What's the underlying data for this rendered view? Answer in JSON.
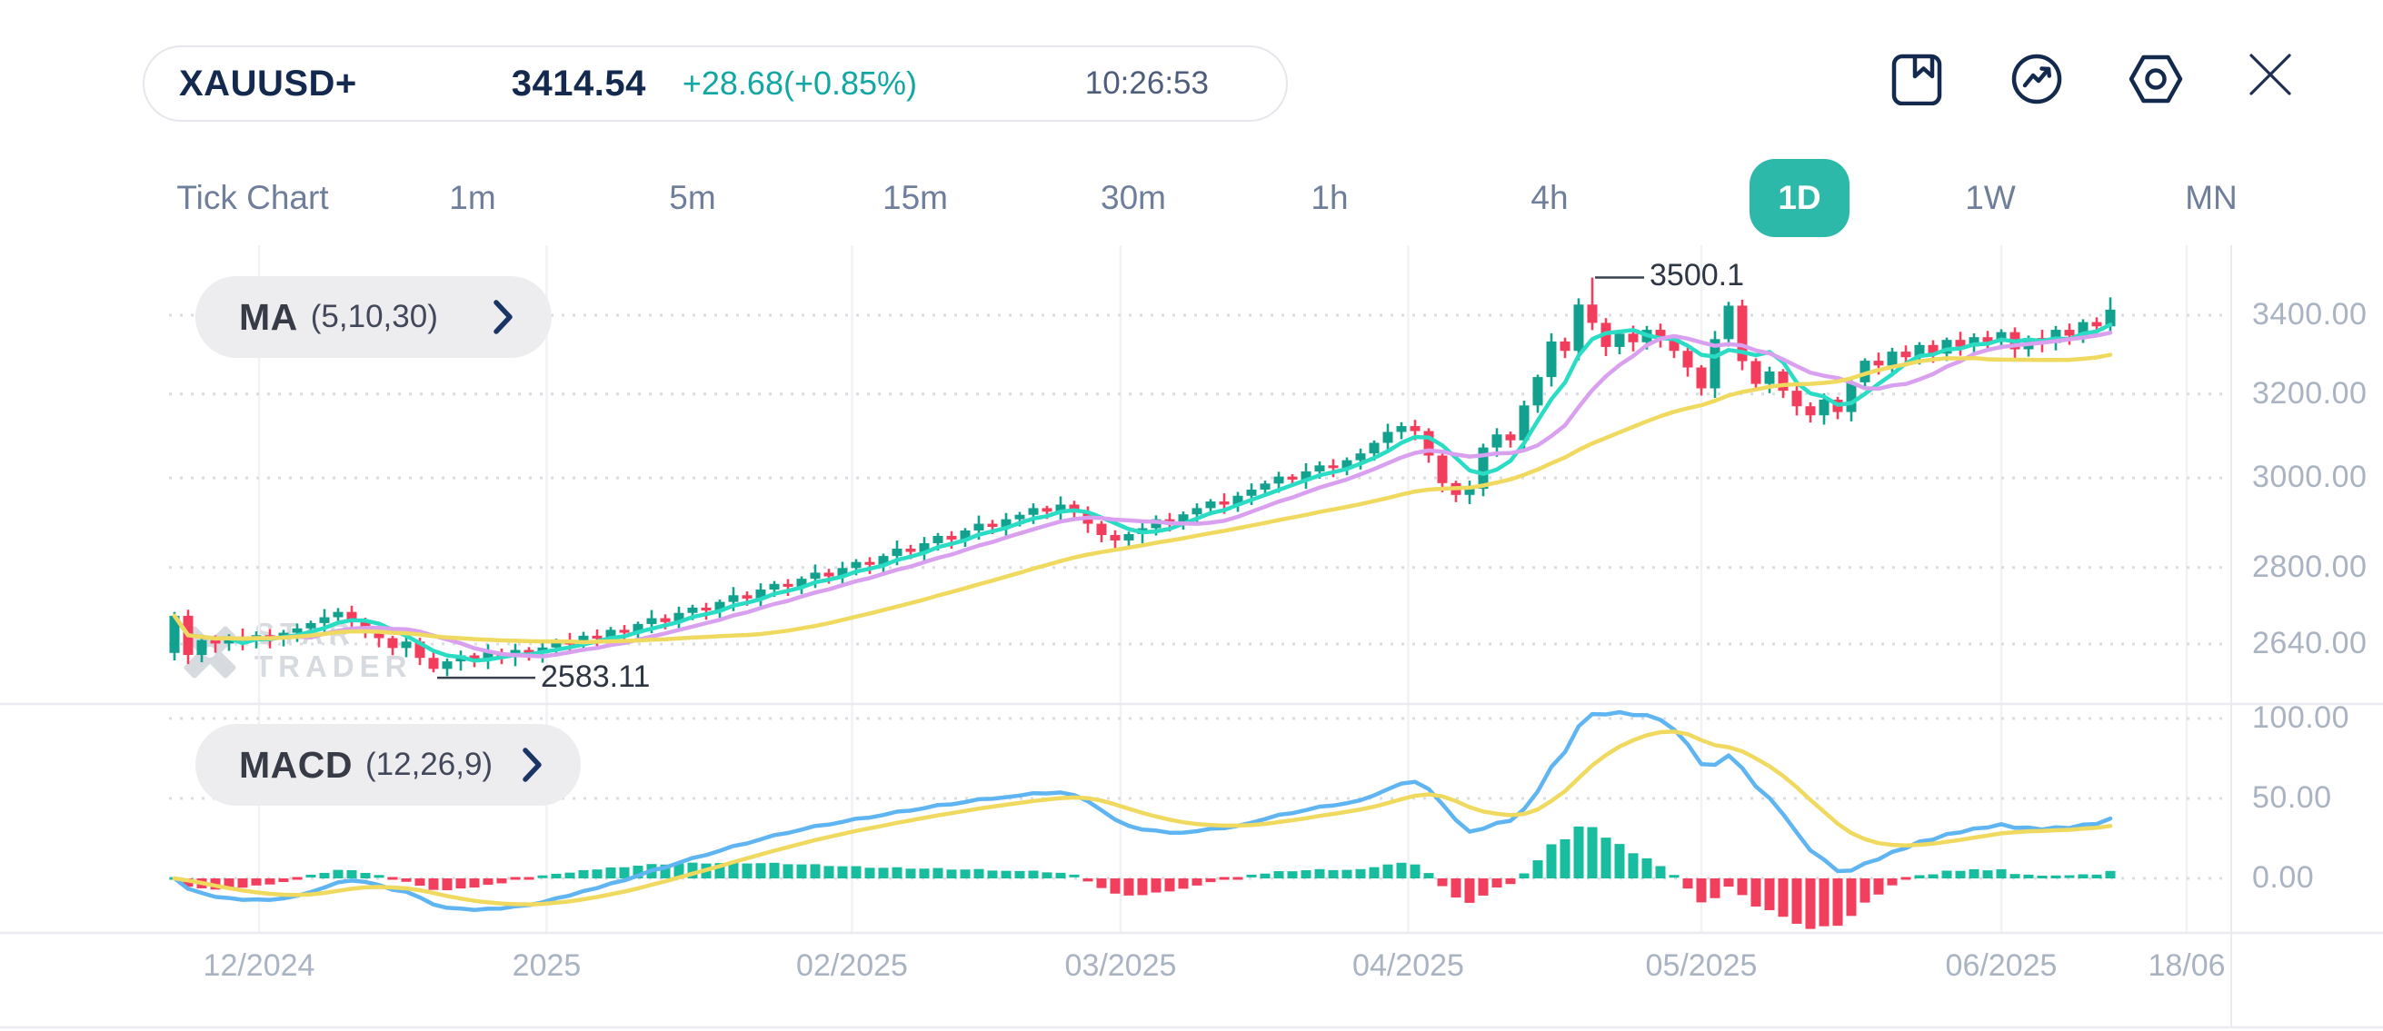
{
  "header": {
    "symbol": "XAUUSD+",
    "price": "3414.54",
    "change": "+28.68(+0.85%)",
    "time": "10:26:53"
  },
  "toolbar": {
    "icons": [
      "bookmark-icon",
      "trend-circle-icon",
      "settings-hex-icon",
      "close-icon"
    ]
  },
  "timeframes": {
    "items": [
      {
        "label": "Tick Chart",
        "active": false
      },
      {
        "label": "1m",
        "active": false
      },
      {
        "label": "5m",
        "active": false
      },
      {
        "label": "15m",
        "active": false
      },
      {
        "label": "30m",
        "active": false
      },
      {
        "label": "1h",
        "active": false
      },
      {
        "label": "4h",
        "active": false
      },
      {
        "label": "1D",
        "active": true
      },
      {
        "label": "1W",
        "active": false
      },
      {
        "label": "MN",
        "active": false
      }
    ]
  },
  "indicators": {
    "ma": {
      "name": "MA",
      "params": "(5,10,30)"
    },
    "macd": {
      "name": "MACD",
      "params": "(12,26,9)"
    }
  },
  "watermark": {
    "line1": "STAR",
    "line2": "TRADER"
  },
  "colors": {
    "navy": "#13294e",
    "change_teal": "#12a7a3",
    "active_tab": "#2cb9aa",
    "candle_up": "#13a18f",
    "candle_down": "#f23e5c",
    "ma5": "#2bdcc5",
    "ma10": "#d9a0ef",
    "ma30": "#efd95e",
    "macd_line": "#5fb4f2",
    "macd_signal": "#efd95e",
    "hist_up": "#17bd9e",
    "hist_down": "#f23f5e",
    "grid_dotted": "#d9dce1",
    "grid_vertical": "#f1f2f4",
    "separator": "#e9ebf0",
    "axis_text": "#a9b3c2",
    "annotation_line": "#39404e"
  },
  "chart_data": {
    "type": "candlestick",
    "symbol": "XAUUSD+",
    "timeframe": "1D",
    "subpanels": [
      "MACD"
    ],
    "price_axis": {
      "scale": "log",
      "ticks": [
        {
          "label": "3400.00",
          "value": 3400
        },
        {
          "label": "3200.00",
          "value": 3200
        },
        {
          "label": "3000.00",
          "value": 3000
        },
        {
          "label": "2800.00",
          "value": 2800
        },
        {
          "label": "2640.00",
          "value": 2640
        }
      ]
    },
    "macd_axis": {
      "ticks": [
        {
          "label": "100.00",
          "value": 100
        },
        {
          "label": "50.00",
          "value": 50
        },
        {
          "label": "0.00",
          "value": 0
        }
      ]
    },
    "x_axis": {
      "ticks": [
        {
          "label": "12/2024",
          "index": 6.2
        },
        {
          "label": "2025",
          "index": 27.3
        },
        {
          "label": "02/2025",
          "index": 49.7
        },
        {
          "label": "03/2025",
          "index": 69.4
        },
        {
          "label": "04/2025",
          "index": 90.5
        },
        {
          "label": "05/2025",
          "index": 112.0
        },
        {
          "label": "06/2025",
          "index": 134.0
        },
        {
          "label": "18/06",
          "index": 147.6
        }
      ]
    },
    "annotations": {
      "high": {
        "label": "3500.1",
        "value": 3500.1,
        "index": 104
      },
      "low": {
        "label": "2583.11",
        "value": 2583.11,
        "index": 19
      }
    },
    "moving_averages": [
      {
        "period": 5,
        "color": "#2bdcc5"
      },
      {
        "period": 10,
        "color": "#d9a0ef"
      },
      {
        "period": 30,
        "color": "#efd95e"
      }
    ],
    "macd": {
      "fast": 12,
      "slow": 26,
      "signal": 9,
      "peak_display": 104
    },
    "candles": {
      "first_open": 2622,
      "last_high": 3447,
      "last_close": 3414.54,
      "closes": [
        2698,
        2618,
        2648,
        2641,
        2655,
        2646,
        2658,
        2650,
        2663,
        2672,
        2683,
        2695,
        2706,
        2688,
        2667,
        2652,
        2632,
        2645,
        2612,
        2590,
        2605,
        2617,
        2608,
        2623,
        2614,
        2628,
        2621,
        2633,
        2646,
        2639,
        2657,
        2651,
        2669,
        2663,
        2681,
        2693,
        2685,
        2704,
        2715,
        2709,
        2727,
        2741,
        2734,
        2753,
        2765,
        2759,
        2776,
        2789,
        2781,
        2799,
        2812,
        2806,
        2825,
        2841,
        2834,
        2853,
        2869,
        2861,
        2881,
        2896,
        2889,
        2906,
        2916,
        2931,
        2923,
        2939,
        2921,
        2896,
        2871,
        2859,
        2873,
        2886,
        2906,
        2899,
        2917,
        2931,
        2946,
        2939,
        2959,
        2973,
        2987,
        3003,
        2996,
        3015,
        3029,
        3023,
        3041,
        3057,
        3082,
        3108,
        3122,
        3110,
        3052,
        2988,
        2961,
        2975,
        3071,
        3102,
        3088,
        3172,
        3242,
        3332,
        3308,
        3428,
        3380,
        3318,
        3352,
        3330,
        3362,
        3340,
        3308,
        3266,
        3214,
        3338,
        3425,
        3282,
        3225,
        3256,
        3208,
        3170,
        3148,
        3186,
        3156,
        3229,
        3283,
        3271,
        3306,
        3292,
        3323,
        3301,
        3336,
        3319,
        3343,
        3331,
        3356,
        3312,
        3341,
        3328,
        3362,
        3347,
        3382,
        3371,
        3414.54
      ]
    }
  }
}
